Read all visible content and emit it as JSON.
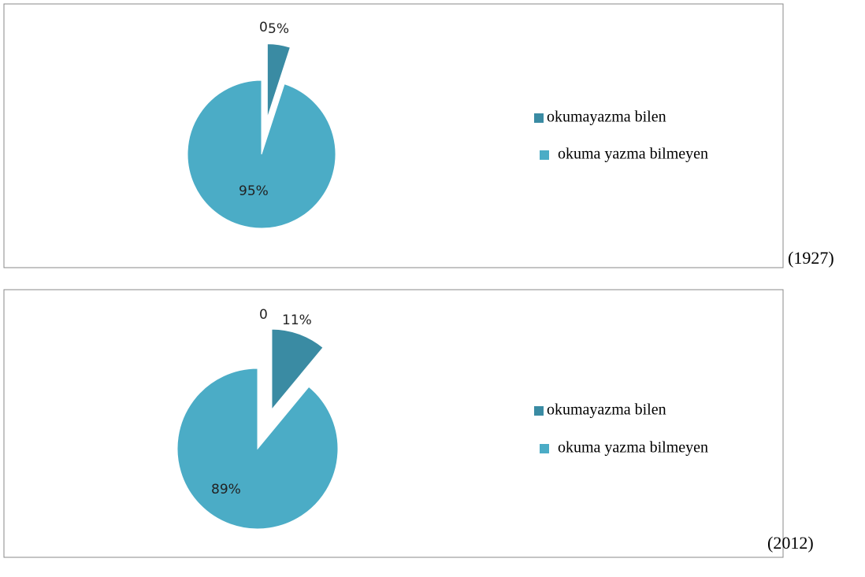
{
  "chart_data": [
    {
      "type": "pie",
      "categories": [
        "okumayazma bilen",
        "okuma yazma bilmeyen"
      ],
      "values": [
        5,
        95
      ],
      "value_labels": [
        "5%",
        "95%"
      ],
      "colors": [
        "#3a8ba3",
        "#4bacc6"
      ],
      "annotation": "0",
      "caption": "(1927)",
      "legend": "right"
    },
    {
      "type": "pie",
      "categories": [
        "okumayazma bilen",
        "okuma yazma bilmeyen"
      ],
      "values": [
        11,
        89
      ],
      "value_labels": [
        "11%",
        "89%"
      ],
      "colors": [
        "#3a8ba3",
        "#4bacc6"
      ],
      "annotation": "0",
      "caption": "(2012)",
      "legend": "right"
    }
  ]
}
